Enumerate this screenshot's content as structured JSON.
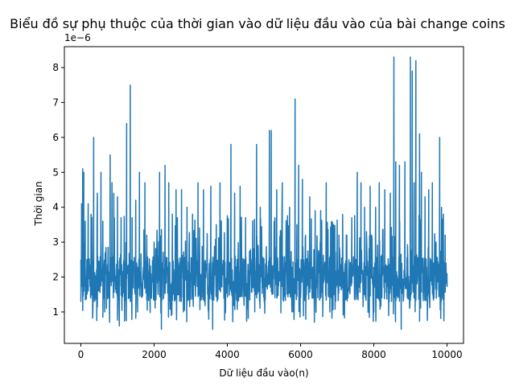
{
  "chart_data": {
    "type": "line",
    "title": "Biểu đồ sự phụ thuộc của thời gian vào dữ liệu đầu vào của bài change coins",
    "xlabel": "Dữ liệu đầu vào(n)",
    "ylabel": "Thời gian",
    "y_offset_label": "1e−6",
    "y_scale_factor": 1e-06,
    "xlim": [
      -450,
      10450
    ],
    "ylim": [
      0.1,
      8.6
    ],
    "x_ticks": [
      0,
      2000,
      4000,
      6000,
      8000,
      10000
    ],
    "x_tick_labels": [
      "0",
      "2000",
      "4000",
      "6000",
      "8000",
      "10000"
    ],
    "y_ticks": [
      1,
      2,
      3,
      4,
      5,
      6,
      7,
      8
    ],
    "y_tick_labels": [
      "1",
      "2",
      "3",
      "4",
      "5",
      "6",
      "7",
      "8"
    ],
    "grid": false,
    "series": [
      {
        "color": "#1f77b4",
        "x_range": [
          0,
          10000
        ],
        "baseline_band": [
          1.3,
          2.6
        ],
        "typical_min": 0.7,
        "points": [
          [
            0,
            2.5
          ],
          [
            20,
            4.1
          ],
          [
            50,
            5.1
          ],
          [
            80,
            5.0
          ],
          [
            120,
            3.6
          ],
          [
            200,
            4.1
          ],
          [
            300,
            3.6
          ],
          [
            350,
            6.0
          ],
          [
            450,
            4.4
          ],
          [
            550,
            5.0
          ],
          [
            600,
            3.6
          ],
          [
            650,
            1.0
          ],
          [
            700,
            1.1
          ],
          [
            800,
            5.5
          ],
          [
            850,
            4.7
          ],
          [
            900,
            4.4
          ],
          [
            1000,
            4.3
          ],
          [
            1050,
            0.6
          ],
          [
            1100,
            3.7
          ],
          [
            1250,
            6.4
          ],
          [
            1350,
            7.5
          ],
          [
            1400,
            3.7
          ],
          [
            1500,
            4.2
          ],
          [
            1550,
            1.0
          ],
          [
            1600,
            5.0
          ],
          [
            1750,
            4.7
          ],
          [
            1800,
            3.2
          ],
          [
            2000,
            3.0
          ],
          [
            2150,
            5.0
          ],
          [
            2200,
            0.5
          ],
          [
            2300,
            5.2
          ],
          [
            2400,
            4.7
          ],
          [
            2500,
            3.8
          ],
          [
            2600,
            4.5
          ],
          [
            2750,
            4.5
          ],
          [
            2800,
            1.0
          ],
          [
            2900,
            4.0
          ],
          [
            3050,
            3.8
          ],
          [
            3200,
            4.7
          ],
          [
            3350,
            4.5
          ],
          [
            3550,
            4.6
          ],
          [
            3600,
            0.5
          ],
          [
            3700,
            3.5
          ],
          [
            3800,
            4.7
          ],
          [
            4100,
            5.8
          ],
          [
            4200,
            4.4
          ],
          [
            4350,
            4.6
          ],
          [
            4500,
            3.7
          ],
          [
            4750,
            1.0
          ],
          [
            4800,
            5.8
          ],
          [
            4900,
            4.0
          ],
          [
            5150,
            6.2
          ],
          [
            5200,
            6.2
          ],
          [
            5300,
            3.7
          ],
          [
            5350,
            4.5
          ],
          [
            5500,
            4.7
          ],
          [
            5700,
            4.0
          ],
          [
            5850,
            7.1
          ],
          [
            5900,
            3.5
          ],
          [
            5950,
            5.2
          ],
          [
            6050,
            4.8
          ],
          [
            6250,
            4.3
          ],
          [
            6400,
            3.9
          ],
          [
            6550,
            3.9
          ],
          [
            6700,
            4.7
          ],
          [
            6800,
            1.0
          ],
          [
            6900,
            3.5
          ],
          [
            7050,
            3.2
          ],
          [
            7250,
            3.2
          ],
          [
            7400,
            3.7
          ],
          [
            7550,
            5.0
          ],
          [
            7650,
            4.7
          ],
          [
            7750,
            4.0
          ],
          [
            7900,
            4.6
          ],
          [
            8000,
            1.0
          ],
          [
            8050,
            4.0
          ],
          [
            8150,
            4.7
          ],
          [
            8300,
            4.5
          ],
          [
            8450,
            4.4
          ],
          [
            8550,
            8.3
          ],
          [
            8600,
            5.3
          ],
          [
            8700,
            5.2
          ],
          [
            8750,
            0.5
          ],
          [
            8850,
            5.3
          ],
          [
            9000,
            8.3
          ],
          [
            9050,
            7.9
          ],
          [
            9100,
            4.7
          ],
          [
            9150,
            8.2
          ],
          [
            9250,
            6.1
          ],
          [
            9300,
            5.0
          ],
          [
            9400,
            4.3
          ],
          [
            9500,
            4.5
          ],
          [
            9600,
            4.7
          ],
          [
            9700,
            3.0
          ],
          [
            9800,
            6.0
          ],
          [
            9850,
            4.0
          ],
          [
            9900,
            3.8
          ],
          [
            9950,
            3.2
          ],
          [
            10000,
            2.1
          ]
        ]
      }
    ]
  }
}
